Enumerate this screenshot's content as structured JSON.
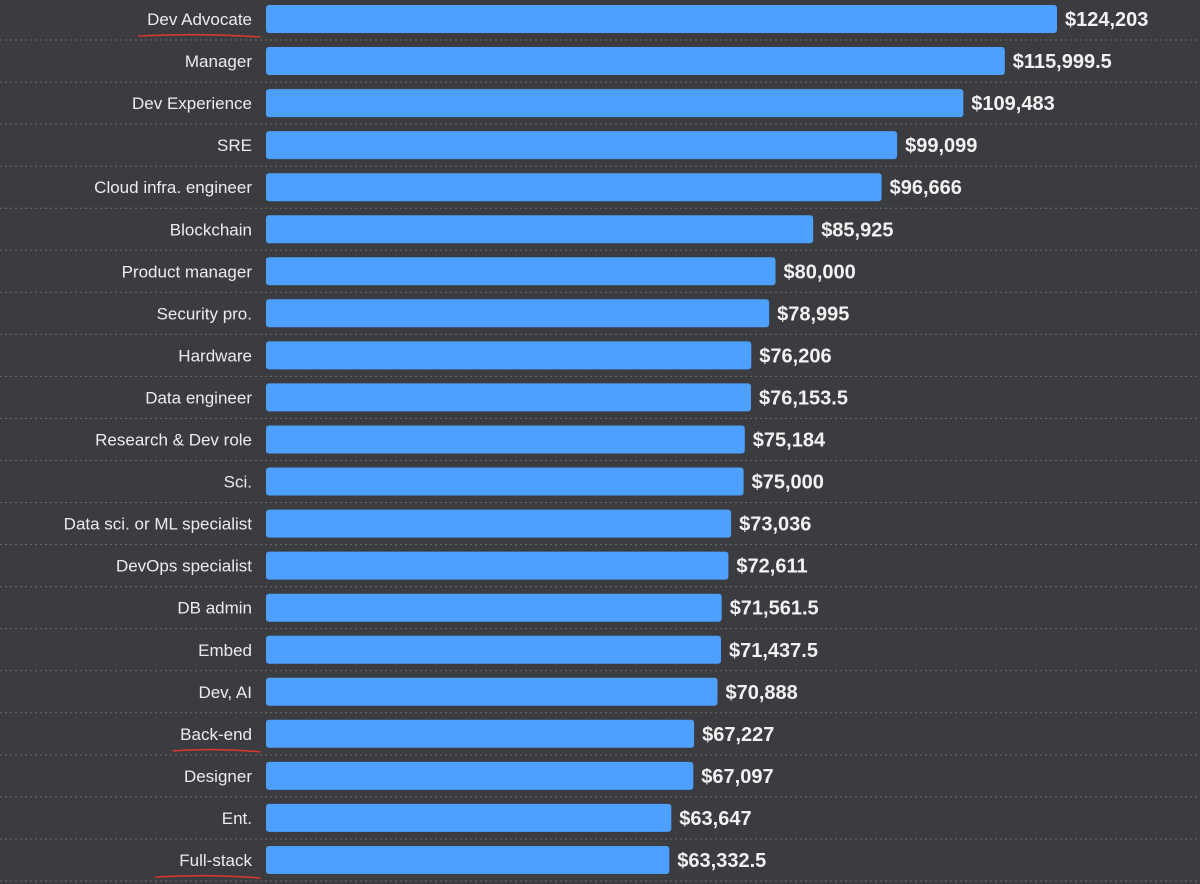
{
  "colors": {
    "background": "#3a3c40",
    "bar": "#4da0ff",
    "label_text": "#ececec",
    "value_text": "#f2f2f2",
    "gridline": "#6a6c70",
    "underline_annotation": "#d43a2c"
  },
  "chart_data": {
    "type": "bar",
    "orientation": "horizontal",
    "title": "",
    "xlabel": "",
    "ylabel": "",
    "xlim": [
      0,
      124203
    ],
    "grid": "dotted row separators",
    "legend": "none",
    "underlined_categories": [
      "Dev Advocate",
      "Back-end",
      "Full-stack"
    ],
    "categories": [
      "Dev Advocate",
      "Manager",
      "Dev Experience",
      "SRE",
      "Cloud infra. engineer",
      "Blockchain",
      "Product manager",
      "Security pro.",
      "Hardware",
      "Data engineer",
      "Research & Dev role",
      "Sci.",
      "Data sci. or ML specialist",
      "DevOps specialist",
      "DB admin",
      "Embed",
      "Dev, AI",
      "Back-end",
      "Designer",
      "Ent.",
      "Full-stack"
    ],
    "values": [
      124203,
      115999.5,
      109483,
      99099,
      96666,
      85925,
      80000,
      78995,
      76206,
      76153.5,
      75184,
      75000,
      73036,
      72611,
      71561.5,
      71437.5,
      70888,
      67227,
      67097,
      63647,
      63332.5
    ],
    "value_labels": [
      "$124,203",
      "$115,999.5",
      "$109,483",
      "$99,099",
      "$96,666",
      "$85,925",
      "$80,000",
      "$78,995",
      "$76,206",
      "$76,153.5",
      "$75,184",
      "$75,000",
      "$73,036",
      "$72,611",
      "$71,561.5",
      "$71,437.5",
      "$70,888",
      "$67,227",
      "$67,097",
      "$63,647",
      "$63,332.5"
    ]
  }
}
